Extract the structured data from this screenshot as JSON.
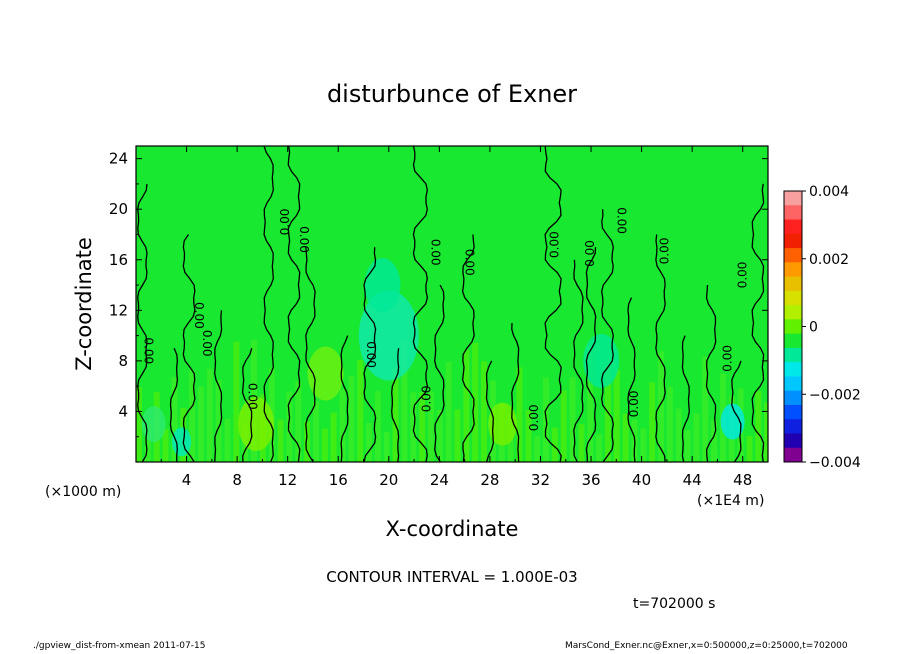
{
  "chart_data": {
    "type": "heatmap",
    "title": "disturbunce of Exner",
    "xlabel": "X-coordinate",
    "ylabel": "Z-coordinate",
    "x_unit_left": "(×1000 m)",
    "x_unit_right": "(×1E4 m)",
    "xlim": [
      0,
      50
    ],
    "ylim": [
      0,
      25
    ],
    "x_ticks": [
      4,
      8,
      12,
      16,
      20,
      24,
      28,
      32,
      36,
      40,
      44,
      48
    ],
    "y_ticks": [
      4,
      8,
      12,
      16,
      20,
      24
    ],
    "colorbar": {
      "range": [
        -0.004,
        0.004
      ],
      "tick_labels": [
        "0.004",
        "0.002",
        "0",
        "−0.002",
        "−0.004"
      ],
      "tick_values": [
        0.004,
        0.002,
        0,
        -0.002,
        -0.004
      ],
      "colors": [
        "#f8a0a0",
        "#ff6464",
        "#ff2020",
        "#f02000",
        "#ff6000",
        "#ff9a00",
        "#e8c000",
        "#d8e000",
        "#b0f000",
        "#60f000",
        "#18e830",
        "#00e898",
        "#00e8e8",
        "#00c8ff",
        "#0090ff",
        "#0050ff",
        "#1020e0",
        "#2000b0",
        "#800090"
      ]
    },
    "contour_interval": "CONTOUR INTERVAL = 1.000E-03",
    "time_label": "t=702000 s",
    "contour_labels": [
      {
        "text": "0.00",
        "x": 1.0,
        "z": 8.8,
        "rot": 90
      },
      {
        "text": "0.00",
        "x": 5.0,
        "z": 11.6,
        "rot": 90
      },
      {
        "text": "0.00",
        "x": 5.6,
        "z": 9.4,
        "rot": 90
      },
      {
        "text": "0.00",
        "x": 9.2,
        "z": 5.2,
        "rot": 90
      },
      {
        "text": "0.00",
        "x": 11.8,
        "z": 19.0,
        "rot": -90
      },
      {
        "text": "0.00",
        "x": 13.3,
        "z": 17.6,
        "rot": 90
      },
      {
        "text": "0.00",
        "x": 18.6,
        "z": 8.5,
        "rot": 90
      },
      {
        "text": "0.00",
        "x": 23.0,
        "z": 5.0,
        "rot": -90
      },
      {
        "text": "0.00",
        "x": 23.7,
        "z": 16.6,
        "rot": 90
      },
      {
        "text": "0.00",
        "x": 26.4,
        "z": 15.8,
        "rot": 90
      },
      {
        "text": "0.00",
        "x": 31.5,
        "z": 3.5,
        "rot": -90
      },
      {
        "text": "0.00",
        "x": 33.1,
        "z": 17.2,
        "rot": -90
      },
      {
        "text": "0.00",
        "x": 35.9,
        "z": 16.5,
        "rot": -90
      },
      {
        "text": "0.00",
        "x": 38.4,
        "z": 19.1,
        "rot": 90
      },
      {
        "text": "0.00",
        "x": 39.4,
        "z": 4.6,
        "rot": -90
      },
      {
        "text": "0.00",
        "x": 41.8,
        "z": 16.7,
        "rot": -90
      },
      {
        "text": "0.00",
        "x": 46.8,
        "z": 8.2,
        "rot": -90
      },
      {
        "text": "0.00",
        "x": 48.0,
        "z": 14.8,
        "rot": -90
      }
    ]
  },
  "footer": {
    "left": "./gpview_dist-from-xmean   2011-07-15",
    "right": "MarsCond_Exner.nc@Exner,x=0:500000,z=0:25000,t=702000"
  }
}
